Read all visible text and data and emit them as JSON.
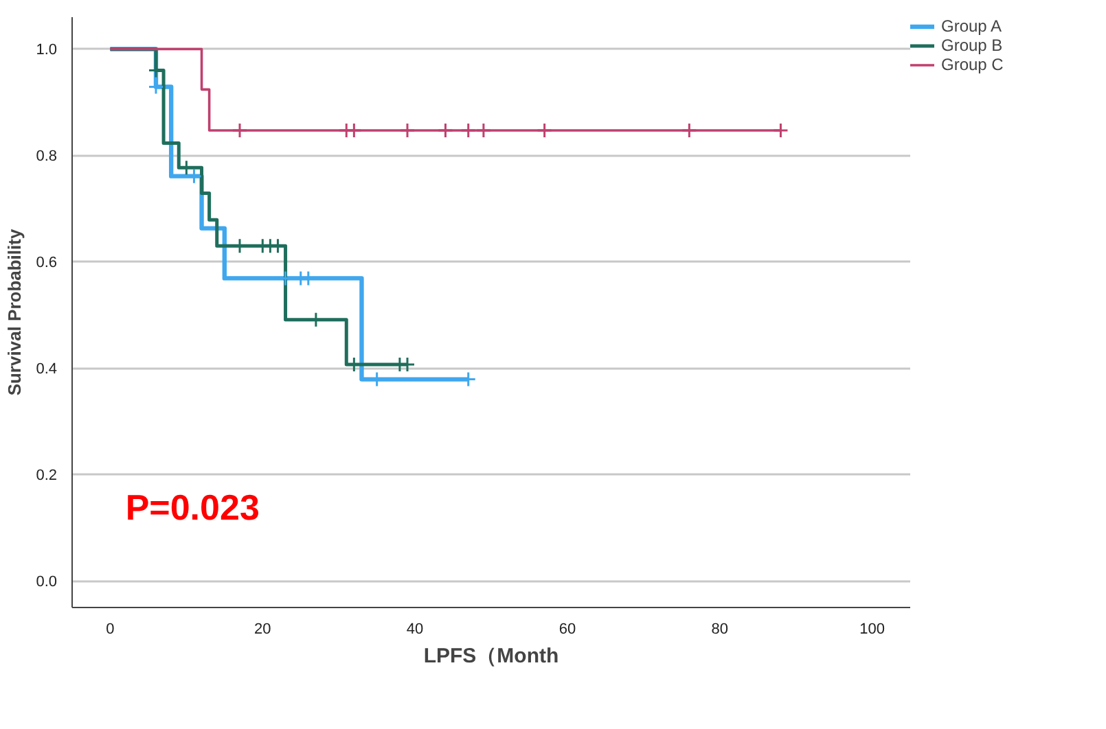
{
  "chart_data": {
    "type": "step",
    "xlabel": "LPFS（Month",
    "ylabel": "Survival Probability",
    "xlim": [
      -5,
      105
    ],
    "ylim": [
      -0.05,
      1.06
    ],
    "xticks": [
      0,
      20,
      40,
      60,
      80,
      100
    ],
    "yticks": [
      {
        "value": 0,
        "label": "0.0"
      },
      {
        "value": 0.2,
        "label": "0.2"
      },
      {
        "value": 0.4,
        "label": "0.4"
      },
      {
        "value": 0.6,
        "label": "0.6"
      },
      {
        "value": 0.8,
        "label": "0.8"
      },
      {
        "value": 1,
        "label": "1.0"
      }
    ],
    "grid": "y",
    "legend": "top right",
    "annotations": [
      "P=0.023"
    ],
    "series": [
      {
        "name": "Group A",
        "color": "#3fa7ee",
        "x": [
          0,
          6,
          8,
          12,
          15,
          33,
          47
        ],
        "values": [
          1,
          0.929,
          0.761,
          0.663,
          0.569,
          0.379,
          0.379
        ]
      },
      {
        "name": "Group B",
        "color": "#1f6e5c",
        "x": [
          0,
          6,
          7,
          9,
          12,
          13,
          14,
          23,
          31,
          39
        ],
        "values": [
          1,
          0.96,
          0.823,
          0.777,
          0.729,
          0.679,
          0.63,
          0.491,
          0.407,
          0.407
        ]
      },
      {
        "name": "Group C",
        "color": "#c0406e",
        "x": [
          0,
          12,
          13,
          88
        ],
        "values": [
          1,
          0.924,
          0.847,
          0.847
        ]
      },
      {
        "type": "scatter",
        "marker": "cross",
        "color": "#3fa7ee",
        "x": [
          6,
          11,
          23,
          25,
          26,
          35,
          47
        ],
        "values": [
          0.929,
          0.761,
          0.569,
          0.569,
          0.569,
          0.379,
          0.379
        ]
      },
      {
        "type": "scatter",
        "marker": "cross",
        "color": "#1f6e5c",
        "x": [
          6,
          10,
          17,
          20,
          21,
          22,
          27,
          32,
          38,
          39
        ],
        "values": [
          0.96,
          0.777,
          0.63,
          0.63,
          0.63,
          0.63,
          0.491,
          0.407,
          0.407,
          0.407
        ]
      },
      {
        "type": "scatter",
        "marker": "cross",
        "color": "#c0406e",
        "x": [
          17,
          31,
          32,
          39,
          44,
          47,
          49,
          57,
          76,
          88
        ],
        "values": [
          0.847,
          0.847,
          0.847,
          0.847,
          0.847,
          0.847,
          0.847,
          0.847,
          0.847,
          0.847
        ]
      }
    ]
  }
}
